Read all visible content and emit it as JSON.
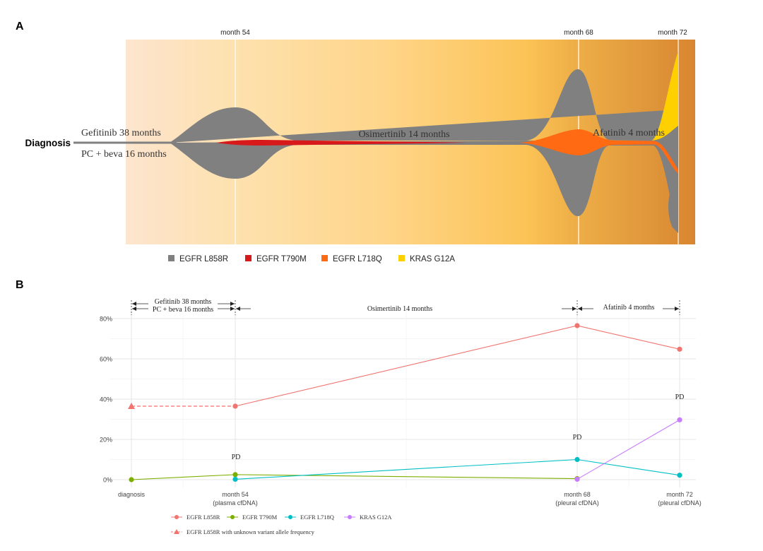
{
  "panel_a": {
    "letter": "A",
    "start_label": "Diagnosis",
    "timepoint_labels": [
      "month 54",
      "month 68",
      "month 72"
    ],
    "treatment_labels": {
      "line1_top": "Gefitinib 38 months",
      "line1_bottom": "PC + beva 16 months",
      "line2": "Osimertinib 14 months",
      "line3": "Afatinib 4 months"
    },
    "legend": [
      {
        "label": "EGFR L858R",
        "color": "#808080"
      },
      {
        "label": "EGFR T790M",
        "color": "#d7191c"
      },
      {
        "label": "EGFR L718Q",
        "color": "#ff6a13"
      },
      {
        "label": "KRAS G12A",
        "color": "#ffd000"
      }
    ]
  },
  "panel_b": {
    "letter": "B",
    "chart_data": {
      "type": "line",
      "x_categories": [
        "diagnosis",
        "month 54",
        "month 68",
        "month 72"
      ],
      "x_sublabels": [
        "",
        "(plasma cfDNA)",
        "(pleural cfDNA)",
        "(pleural cfDNA)"
      ],
      "x_months": [
        0,
        54,
        68,
        72
      ],
      "y_ticks": [
        "0%",
        "20%",
        "40%",
        "60%",
        "80%"
      ],
      "ylim": [
        0,
        80
      ],
      "series": [
        {
          "name": "EGFR L858R",
          "color": "#f07470",
          "values": [
            null,
            36.5,
            76.5,
            64.8
          ]
        },
        {
          "name": "EGFR T790M",
          "color": "#7cae00",
          "values": [
            0,
            2.5,
            0.5,
            null
          ]
        },
        {
          "name": "EGFR L718Q",
          "color": "#00bfc4",
          "values": [
            null,
            0.2,
            10,
            2.2
          ]
        },
        {
          "name": "KRAS G12A",
          "color": "#c77cff",
          "values": [
            null,
            null,
            0.2,
            29.7
          ]
        }
      ],
      "unknown_vaf": {
        "name": "EGFR L858R with unknown variant allele frequency",
        "color": "#f07470",
        "from": [
          0,
          36.5
        ],
        "to": [
          1,
          36.5
        ]
      },
      "pd_labels": [
        "PD",
        "PD",
        "PD"
      ],
      "treatments": {
        "line1_top": "Gefitinib 38 months",
        "line1_bottom": "PC + beva 16 months",
        "line2": "Osimertinib 14 months",
        "line3": "Afatinib 4 months"
      }
    }
  }
}
